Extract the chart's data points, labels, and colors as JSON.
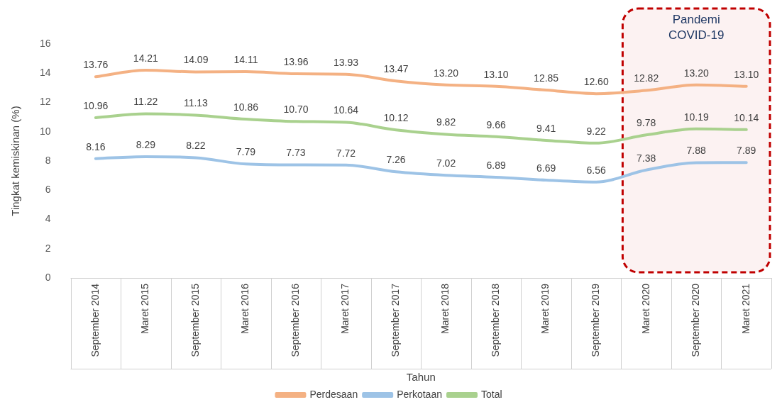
{
  "chart_data": {
    "type": "line",
    "categories": [
      "September 2014",
      "Maret 2015",
      "September 2015",
      "Maret 2016",
      "September 2016",
      "Maret 2017",
      "September 2017",
      "Maret 2018",
      "September 2018",
      "Maret 2019",
      "September 2019",
      "Maret 2020",
      "September 2020",
      "Maret 2021"
    ],
    "series": [
      {
        "name": "Perdesaan",
        "color": "#f4b183",
        "values": [
          13.76,
          14.21,
          14.09,
          14.11,
          13.96,
          13.93,
          13.47,
          13.2,
          13.1,
          12.85,
          12.6,
          12.82,
          13.2,
          13.1
        ],
        "value_labels": [
          "13.76",
          "14.21",
          "14.09",
          "14.11",
          "13.96",
          "13.93",
          "13.47",
          "13.20",
          "13.10",
          "12.85",
          "12.60",
          "12.82",
          "13.20",
          "13.10"
        ]
      },
      {
        "name": "Perkotaan",
        "color": "#9dc3e6",
        "values": [
          8.16,
          8.29,
          8.22,
          7.79,
          7.73,
          7.72,
          7.26,
          7.02,
          6.89,
          6.69,
          6.56,
          7.38,
          7.88,
          7.89
        ],
        "value_labels": [
          "8.16",
          "8.29",
          "8.22",
          "7.79",
          "7.73",
          "7.72",
          "7.26",
          "7.02",
          "6.89",
          "6.69",
          "6.56",
          "7.38",
          "7.88",
          "7.89"
        ]
      },
      {
        "name": "Total",
        "color": "#a9d18e",
        "values": [
          10.96,
          11.22,
          11.13,
          10.86,
          10.7,
          10.64,
          10.12,
          9.82,
          9.66,
          9.41,
          9.22,
          9.78,
          10.19,
          10.14
        ],
        "value_labels": [
          "10.96",
          "11.22",
          "11.13",
          "10.86",
          "10.70",
          "10.64",
          "10.12",
          "9.82",
          "9.66",
          "9.41",
          "9.22",
          "9.78",
          "10.19",
          "10.14"
        ]
      }
    ],
    "ylim": [
      0,
      16
    ],
    "yticks": [
      0,
      2,
      4,
      6,
      8,
      10,
      12,
      14,
      16
    ],
    "ylabel": "Tingkat kemiskinan (%)",
    "xlabel": "Tahun",
    "bands": [
      {
        "axis": "x",
        "from": "Maret 2020",
        "to": "Maret 2021",
        "label": "Pandemi COVID-19",
        "color": "#c00000"
      }
    ],
    "grid": false,
    "legend": "bottom",
    "line_style": "solid"
  }
}
